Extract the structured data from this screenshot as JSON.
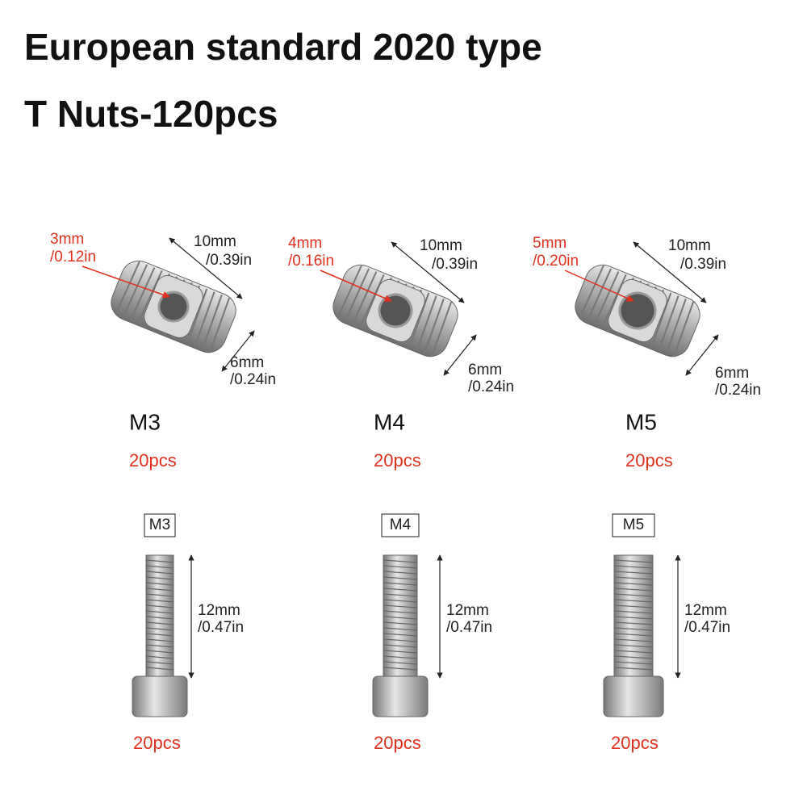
{
  "header": {
    "title_line_1": "European standard 2020 type",
    "title_line_2": "T Nuts-120pcs"
  },
  "nuts": [
    {
      "hole": "3mm",
      "hole_in": "/0.12in",
      "length": "10mm",
      "length_in": "/0.39in",
      "width": "6mm",
      "width_in": "/0.24in",
      "size": "M3",
      "count": "20pcs"
    },
    {
      "hole": "4mm",
      "hole_in": "/0.16in",
      "length": "10mm",
      "length_in": "/0.39in",
      "width": "6mm",
      "width_in": "/0.24in",
      "size": "M4",
      "count": "20pcs"
    },
    {
      "hole": "5mm",
      "hole_in": "/0.20in",
      "length": "10mm",
      "length_in": "/0.39in",
      "width": "6mm",
      "width_in": "/0.24in",
      "size": "M5",
      "count": "20pcs"
    }
  ],
  "screws": [
    {
      "size": "M3",
      "length": "12mm",
      "length_in": "/0.47in",
      "count": "20pcs"
    },
    {
      "size": "M4",
      "length": "12mm",
      "length_in": "/0.47in",
      "count": "20pcs"
    },
    {
      "size": "M5",
      "length": "12mm",
      "length_in": "/0.47in",
      "count": "20pcs"
    }
  ]
}
